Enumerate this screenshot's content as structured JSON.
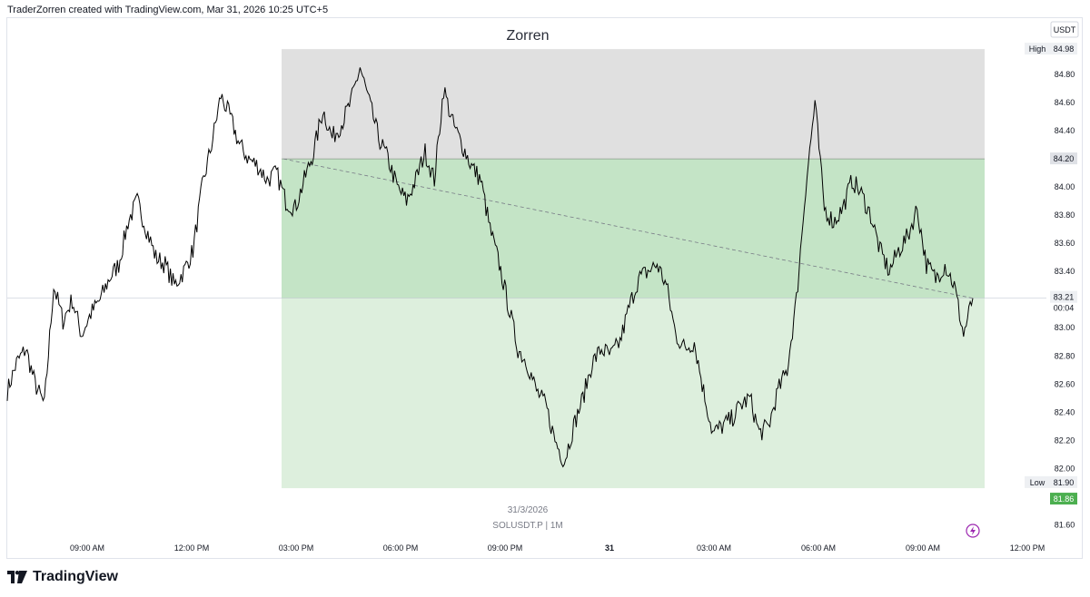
{
  "header": {
    "credit": "TraderZorren created with TradingView.com, Mar 31, 2026 10:25 UTC+5"
  },
  "footer": {
    "brand": "TradingView",
    "logo_icon": "tradingview-logo-icon"
  },
  "chart_data": {
    "type": "line",
    "title": "Zorren",
    "currency": "USDT",
    "watermark": {
      "date": "31/3/2026",
      "symbol_line": "SOLUSDT.P | 1M"
    },
    "x_ticks": [
      "09:00 AM",
      "12:00 PM",
      "03:00 PM",
      "06:00 PM",
      "09:00 PM",
      "31",
      "03:00 AM",
      "06:00 AM",
      "09:00 AM",
      "12:00 PM"
    ],
    "y_ticks": [
      "84.80",
      "84.60",
      "84.40",
      "84.00",
      "83.80",
      "83.60",
      "83.40",
      "83.00",
      "82.80",
      "82.60",
      "82.40",
      "82.20",
      "82.00",
      "81.60"
    ],
    "ylim": [
      81.48,
      85.2
    ],
    "price_labels": {
      "high_label": "High",
      "high_value": "84.98",
      "level_value": "84.20",
      "last_value": "83.21",
      "countdown": "00:04",
      "low_label": "Low",
      "low_value": "81.90",
      "bottom_value": "81.86"
    },
    "zones": [
      {
        "name": "upper",
        "from": 84.2,
        "to": 84.98,
        "color": "#e0e0e0"
      },
      {
        "name": "middle",
        "from": 83.21,
        "to": 84.2,
        "color": "#c4e4c6"
      },
      {
        "name": "lower",
        "from": 81.86,
        "to": 83.21,
        "color": "#ddefdd"
      }
    ],
    "series": [
      {
        "values": [
          82.55,
          82.75,
          82.85,
          82.6,
          82.45,
          83.3,
          83.05,
          83.2,
          82.95,
          83.1,
          83.2,
          83.35,
          83.45,
          83.75,
          83.9,
          83.7,
          83.5,
          83.45,
          83.3,
          83.4,
          83.55,
          84.0,
          84.3,
          84.65,
          84.5,
          84.3,
          84.2,
          84.15,
          84.05,
          84.1,
          83.9,
          83.85,
          84.05,
          84.25,
          84.55,
          84.35,
          84.45,
          84.6,
          84.85,
          84.6,
          84.35,
          84.2,
          84.0,
          83.9,
          84.05,
          84.25,
          84.05,
          84.7,
          84.45,
          84.3,
          84.15,
          84.05,
          83.7,
          83.45,
          83.15,
          82.85,
          82.75,
          82.55,
          82.45,
          82.2,
          82.05,
          82.3,
          82.5,
          82.75,
          82.85,
          82.8,
          82.9,
          83.15,
          83.35,
          83.4,
          83.45,
          83.3,
          82.95,
          82.85,
          82.9,
          82.55,
          82.25,
          82.3,
          82.35,
          82.45,
          82.5,
          82.25,
          82.3,
          82.55,
          82.7,
          83.2,
          84.0,
          84.6,
          83.85,
          83.75,
          83.85,
          84.05,
          83.95,
          83.8,
          83.55,
          83.4,
          83.55,
          83.65,
          83.85,
          83.45,
          83.35,
          83.45,
          83.3,
          82.95,
          83.21
        ]
      }
    ]
  }
}
